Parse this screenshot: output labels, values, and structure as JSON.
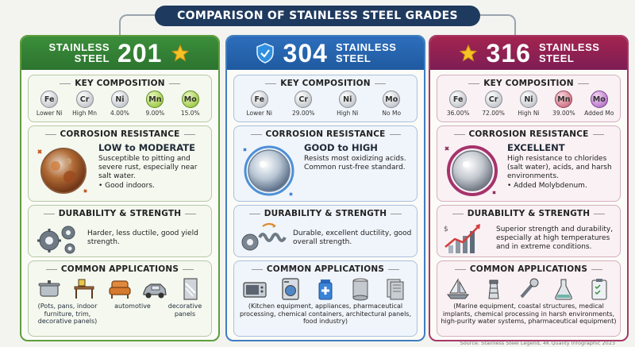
{
  "title": "COMPARISON OF STAINLESS STEEL GRADES",
  "panels": {
    "p201": {
      "header_small_1": "STAINLESS",
      "header_small_2": "STEEL",
      "header_num": "201",
      "header_icon": "star-icon",
      "accent": "#2c7430",
      "composition_title": "KEY COMPOSITION",
      "elements": [
        {
          "symbol": "Fe",
          "label": "Lower Ni"
        },
        {
          "symbol": "Cr",
          "label": "High Mn"
        },
        {
          "symbol": "Ni",
          "label": "4.00%"
        },
        {
          "symbol": "Mn",
          "label": "9.00%"
        },
        {
          "symbol": "Mo",
          "label": "15.0%"
        }
      ],
      "corrosion_title": "CORROSION RESISTANCE",
      "corrosion_head": "LOW to MODERATE",
      "corrosion_desc": "Susceptible to pitting and severe rust, especially near salt water.",
      "corrosion_bullet": "• Good indoors.",
      "durability_title": "DURABILITY & STRENGTH",
      "durability_desc": "Harder, less ductile, good yield strength.",
      "applications_title": "COMMON APPLICATIONS",
      "applications": [
        "(Pots, pans,",
        "indoor furniture, trim, decorative panels)",
        "automotive",
        "decorative panels"
      ]
    },
    "p304": {
      "header_num": "304",
      "header_small_1": "STAINLESS",
      "header_small_2": "STEEL",
      "header_icon": "shield-icon",
      "accent": "#1f5aa0",
      "composition_title": "KEY COMPOSITION",
      "elements": [
        {
          "symbol": "Fe",
          "label": "Lower Ni"
        },
        {
          "symbol": "Cr",
          "label": "29.00%"
        },
        {
          "symbol": "Ni",
          "label": "High Ni"
        },
        {
          "symbol": "Mo",
          "label": "No Mo"
        }
      ],
      "corrosion_title": "CORROSION RESISTANCE",
      "corrosion_head": "GOOD to HIGH",
      "corrosion_desc": "Resists most oxidizing acids. Common rust-free standard.",
      "durability_title": "DURABILITY & STRENGTH",
      "durability_desc": "Durable, excellent ductility, good overall strength.",
      "applications_title": "COMMON APPLICATIONS",
      "applications_text": "(Kitchen equipment, appliances, pharmaceutical processing, chemical containers, architectural panels, food industry)"
    },
    "p316": {
      "header_num": "316",
      "header_small_1": "STAINLESS",
      "header_small_2": "STEEL",
      "header_icon": "star-icon",
      "accent": "#7d1d55",
      "composition_title": "KEY COMPOSITION",
      "elements": [
        {
          "symbol": "Fe",
          "label": "36.00%"
        },
        {
          "symbol": "Cr",
          "label": "72.00%"
        },
        {
          "symbol": "Ni",
          "label": "High Ni"
        },
        {
          "symbol": "Mn",
          "label": "39.00%"
        },
        {
          "symbol": "Mo",
          "label": "Added Mo"
        }
      ],
      "corrosion_title": "CORROSION RESISTANCE",
      "corrosion_head": "EXCELLENT",
      "corrosion_desc": "High resistance to chlorides (salt water), acids, and harsh environments.",
      "corrosion_bullet": "• Added Molybdenum.",
      "durability_title": "DURABILITY & STRENGTH",
      "durability_desc": "Superior strength and durability, especially at high temperatures and in extreme conditions.",
      "applications_title": "COMMON APPLICATIONS",
      "applications_text": "(Marine equipment, coastal structures, medical implants, chemical processing in harsh environments, high-purity water systems, pharmaceutical equipment)"
    }
  },
  "source": "Source: Stainless Steel Legend, 4K Quality Infographic 2023"
}
